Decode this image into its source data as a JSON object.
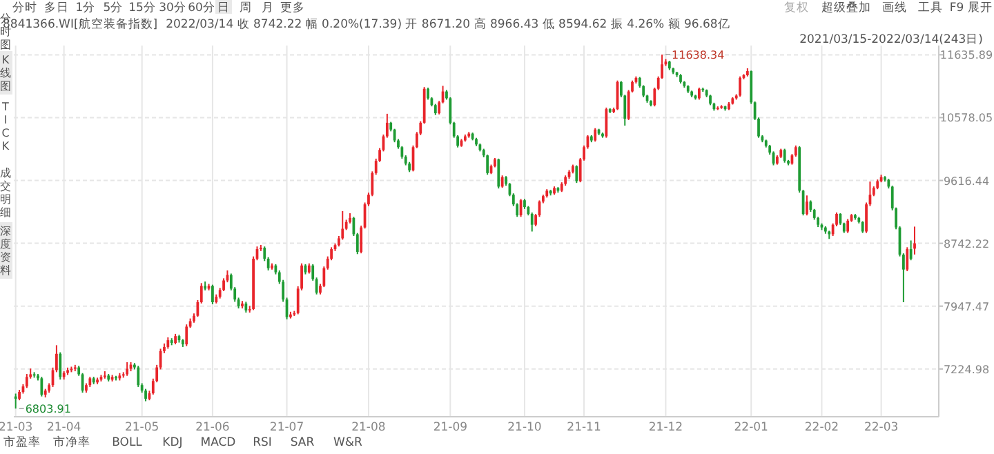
{
  "chart_data": {
    "type": "candlestick",
    "title": "8841366.WI[航空装备指数]",
    "subtitle": "2022/03/14 收 8742.22 幅 0.20%(17.39) 开 8671.20 高 8966.43 低 8594.62 振 4.26% 额 96.68亿",
    "log": true,
    "grid": true,
    "ylim": [
      6720,
      11800
    ],
    "yticks": [
      11635.89,
      10578.05,
      9616.44,
      8742.22,
      7947.47,
      7224.98
    ],
    "annotations": [
      "2021/03/15-2022/03/14(243日)",
      "分时",
      "多日",
      "1分",
      "5分",
      "15分",
      "30分",
      "60分",
      "日",
      "周",
      "月",
      "更多",
      "复权",
      "超级叠加",
      "画线",
      "工具",
      "F9",
      "展开",
      "分时图",
      "K线图",
      "TICK",
      "成交明细",
      "深度资料",
      "市盈率",
      "市净率",
      "BOLL",
      "KDJ",
      "MACD",
      "RSI",
      "SAR",
      "W&R",
      "11638.34",
      "6803.91"
    ],
    "categories": [
      "21-03",
      null,
      null,
      null,
      null,
      null,
      null,
      null,
      null,
      null,
      null,
      null,
      null,
      "21-04",
      null,
      null,
      null,
      null,
      null,
      null,
      null,
      null,
      null,
      null,
      null,
      null,
      null,
      null,
      null,
      null,
      null,
      null,
      null,
      null,
      "21-05",
      null,
      null,
      null,
      null,
      null,
      null,
      null,
      null,
      null,
      null,
      null,
      null,
      null,
      null,
      null,
      null,
      null,
      null,
      "21-06",
      null,
      null,
      null,
      null,
      null,
      null,
      null,
      null,
      null,
      null,
      null,
      null,
      null,
      null,
      null,
      null,
      null,
      null,
      null,
      "21-07",
      null,
      null,
      null,
      null,
      null,
      null,
      null,
      null,
      null,
      null,
      null,
      null,
      null,
      null,
      null,
      null,
      null,
      null,
      null,
      null,
      null,
      "21-08",
      null,
      null,
      null,
      null,
      null,
      null,
      null,
      null,
      null,
      null,
      null,
      null,
      null,
      null,
      null,
      null,
      null,
      null,
      null,
      null,
      null,
      "21-09",
      null,
      null,
      null,
      null,
      null,
      null,
      null,
      null,
      null,
      null,
      null,
      null,
      null,
      null,
      null,
      null,
      null,
      null,
      null,
      "21-10",
      null,
      null,
      null,
      null,
      null,
      null,
      null,
      null,
      null,
      null,
      null,
      null,
      null,
      null,
      null,
      "21-11",
      null,
      null,
      null,
      null,
      null,
      null,
      null,
      null,
      null,
      null,
      null,
      null,
      null,
      null,
      null,
      null,
      null,
      null,
      null,
      null,
      null,
      "21-12",
      null,
      null,
      null,
      null,
      null,
      null,
      null,
      null,
      null,
      null,
      null,
      null,
      null,
      null,
      null,
      null,
      null,
      null,
      null,
      null,
      null,
      null,
      "22-01",
      null,
      null,
      null,
      null,
      null,
      null,
      null,
      null,
      null,
      null,
      null,
      null,
      null,
      null,
      null,
      null,
      null,
      null,
      "22-02",
      null,
      null,
      null,
      null,
      null,
      null,
      null,
      null,
      null,
      null,
      null,
      null,
      null,
      null,
      null,
      "22-03",
      null,
      null,
      null,
      null,
      null,
      null,
      null,
      null,
      null
    ],
    "ohlc": [
      [
        6930,
        6960,
        6803.91,
        6906
      ],
      [
        6906,
        7000,
        6890,
        6978
      ],
      [
        6978,
        7060,
        6960,
        7036
      ],
      [
        7036,
        7170,
        7020,
        7138
      ],
      [
        7138,
        7230,
        7120,
        7167
      ],
      [
        7167,
        7190,
        7130,
        7153
      ],
      [
        7153,
        7170,
        7100,
        7123
      ],
      [
        7123,
        7140,
        6930,
        6949
      ],
      [
        6949,
        7010,
        6920,
        6992
      ],
      [
        6992,
        7070,
        6970,
        7050
      ],
      [
        7050,
        7240,
        7030,
        7212
      ],
      [
        7212,
        7490,
        7190,
        7393
      ],
      [
        7393,
        7410,
        7110,
        7138
      ],
      [
        7138,
        7200,
        7110,
        7182
      ],
      [
        7182,
        7240,
        7160,
        7212
      ],
      [
        7212,
        7250,
        7190,
        7227
      ],
      [
        7227,
        7270,
        7200,
        7242
      ],
      [
        7242,
        7260,
        7150,
        7167
      ],
      [
        7167,
        7180,
        6970,
        6992
      ],
      [
        6992,
        7070,
        6970,
        7050
      ],
      [
        7050,
        7140,
        7030,
        7123
      ],
      [
        7123,
        7140,
        7060,
        7079
      ],
      [
        7079,
        7130,
        7060,
        7109
      ],
      [
        7109,
        7160,
        7090,
        7138
      ],
      [
        7138,
        7200,
        7120,
        7153
      ],
      [
        7153,
        7170,
        7090,
        7109
      ],
      [
        7109,
        7160,
        7090,
        7138
      ],
      [
        7138,
        7150,
        7100,
        7123
      ],
      [
        7123,
        7180,
        7100,
        7153
      ],
      [
        7153,
        7190,
        7130,
        7167
      ],
      [
        7167,
        7300,
        7150,
        7227
      ],
      [
        7227,
        7300,
        7200,
        7272
      ],
      [
        7272,
        7290,
        7220,
        7242
      ],
      [
        7242,
        7260,
        7030,
        7050
      ],
      [
        7050,
        7070,
        6970,
        6992
      ],
      [
        6992,
        7010,
        6880,
        6906
      ],
      [
        6906,
        6990,
        6890,
        6963
      ],
      [
        6963,
        7120,
        6950,
        7094
      ],
      [
        7094,
        7270,
        7080,
        7242
      ],
      [
        7242,
        7450,
        7220,
        7424
      ],
      [
        7424,
        7510,
        7400,
        7470
      ],
      [
        7470,
        7580,
        7450,
        7547
      ],
      [
        7547,
        7570,
        7490,
        7516
      ],
      [
        7516,
        7620,
        7500,
        7594
      ],
      [
        7594,
        7610,
        7520,
        7547
      ],
      [
        7547,
        7560,
        7470,
        7500
      ],
      [
        7500,
        7730,
        7480,
        7704
      ],
      [
        7704,
        7800,
        7690,
        7768
      ],
      [
        7768,
        7860,
        7750,
        7832
      ],
      [
        7832,
        8020,
        7820,
        7995
      ],
      [
        7995,
        8230,
        7980,
        8195
      ],
      [
        8195,
        8250,
        8140,
        8161
      ],
      [
        8161,
        8220,
        8140,
        8195
      ],
      [
        8195,
        8210,
        7970,
        7995
      ],
      [
        7995,
        8090,
        7980,
        8061
      ],
      [
        8061,
        8170,
        8040,
        8144
      ],
      [
        8144,
        8290,
        8130,
        8263
      ],
      [
        8263,
        8390,
        8240,
        8332
      ],
      [
        8332,
        8350,
        8140,
        8161
      ],
      [
        8161,
        8180,
        8000,
        8028
      ],
      [
        8028,
        8050,
        7920,
        7946
      ],
      [
        7946,
        8010,
        7920,
        7979
      ],
      [
        7979,
        8000,
        7870,
        7896
      ],
      [
        7896,
        7950,
        7870,
        7912
      ],
      [
        7912,
        8570,
        7900,
        8540
      ],
      [
        8540,
        8700,
        8520,
        8665
      ],
      [
        8665,
        8720,
        8640,
        8683
      ],
      [
        8683,
        8700,
        8510,
        8540
      ],
      [
        8540,
        8560,
        8390,
        8418
      ],
      [
        8418,
        8480,
        8400,
        8453
      ],
      [
        8453,
        8470,
        8340,
        8366
      ],
      [
        8366,
        8390,
        8220,
        8246
      ],
      [
        8246,
        8270,
        8000,
        8028
      ],
      [
        8028,
        8050,
        7790,
        7816
      ],
      [
        7816,
        7880,
        7800,
        7848
      ],
      [
        7848,
        7890,
        7830,
        7864
      ],
      [
        7864,
        8190,
        7850,
        8161
      ],
      [
        8161,
        8480,
        8140,
        8453
      ],
      [
        8453,
        8470,
        8340,
        8366
      ],
      [
        8366,
        8480,
        8350,
        8453
      ],
      [
        8453,
        8470,
        8260,
        8280
      ],
      [
        8280,
        8300,
        8090,
        8111
      ],
      [
        8111,
        8220,
        8090,
        8195
      ],
      [
        8195,
        8440,
        8180,
        8418
      ],
      [
        8418,
        8570,
        8400,
        8540
      ],
      [
        8540,
        8690,
        8520,
        8665
      ],
      [
        8665,
        8740,
        8640,
        8718
      ],
      [
        8718,
        8840,
        8700,
        8808
      ],
      [
        8808,
        9180,
        8790,
        8937
      ],
      [
        8937,
        9060,
        8920,
        9029
      ],
      [
        9029,
        9150,
        9010,
        9085
      ],
      [
        9085,
        9100,
        8840,
        8863
      ],
      [
        8863,
        8880,
        8600,
        8629
      ],
      [
        8629,
        8980,
        8610,
        8955
      ],
      [
        8955,
        9300,
        8940,
        9274
      ],
      [
        9274,
        9440,
        9250,
        9410
      ],
      [
        9410,
        9750,
        9390,
        9725
      ],
      [
        9725,
        9940,
        9700,
        9907
      ],
      [
        9907,
        10100,
        9890,
        10072
      ],
      [
        10072,
        10310,
        10050,
        10282
      ],
      [
        10282,
        10640,
        10260,
        10496
      ],
      [
        10496,
        10510,
        10360,
        10388
      ],
      [
        10388,
        10400,
        10190,
        10218
      ],
      [
        10218,
        10240,
        10090,
        10114
      ],
      [
        10114,
        10130,
        9940,
        9969
      ],
      [
        9969,
        9990,
        9840,
        9866
      ],
      [
        9866,
        9890,
        9740,
        9765
      ],
      [
        9765,
        10140,
        9750,
        10114
      ],
      [
        10114,
        10350,
        10100,
        10325
      ],
      [
        10325,
        10520,
        10300,
        10496
      ],
      [
        10496,
        11080,
        10480,
        11051
      ],
      [
        11051,
        11070,
        10870,
        10893
      ],
      [
        10893,
        10910,
        10760,
        10781
      ],
      [
        10781,
        10800,
        10620,
        10649
      ],
      [
        10649,
        10850,
        10630,
        10826
      ],
      [
        10826,
        11100,
        10810,
        11006
      ],
      [
        11006,
        11030,
        10870,
        10893
      ],
      [
        10893,
        10910,
        10470,
        10496
      ],
      [
        10496,
        10510,
        10260,
        10282
      ],
      [
        10282,
        10300,
        10110,
        10135
      ],
      [
        10135,
        10240,
        10120,
        10218
      ],
      [
        10218,
        10310,
        10200,
        10282
      ],
      [
        10282,
        10350,
        10260,
        10325
      ],
      [
        10325,
        10340,
        10220,
        10240
      ],
      [
        10240,
        10260,
        10130,
        10156
      ],
      [
        10156,
        10170,
        10050,
        10072
      ],
      [
        10072,
        10090,
        9960,
        9989
      ],
      [
        9989,
        10000,
        9700,
        9725
      ],
      [
        9725,
        9850,
        9710,
        9825
      ],
      [
        9825,
        9950,
        9810,
        9928
      ],
      [
        9928,
        9940,
        9500,
        9527
      ],
      [
        9527,
        9690,
        9510,
        9665
      ],
      [
        9665,
        9680,
        9540,
        9566
      ],
      [
        9566,
        9580,
        9390,
        9410
      ],
      [
        9410,
        9430,
        9250,
        9274
      ],
      [
        9274,
        9290,
        9100,
        9122
      ],
      [
        9122,
        9350,
        9100,
        9332
      ],
      [
        9332,
        9350,
        9210,
        9236
      ],
      [
        9236,
        9250,
        9120,
        9141
      ],
      [
        9141,
        9160,
        8900,
        8992
      ],
      [
        8992,
        9140,
        8970,
        9122
      ],
      [
        9122,
        9330,
        9100,
        9313
      ],
      [
        9313,
        9410,
        9290,
        9391
      ],
      [
        9391,
        9490,
        9370,
        9468
      ],
      [
        9468,
        9480,
        9400,
        9429
      ],
      [
        9429,
        9530,
        9410,
        9507
      ],
      [
        9507,
        9520,
        9440,
        9468
      ],
      [
        9468,
        9590,
        9450,
        9566
      ],
      [
        9566,
        9690,
        9540,
        9665
      ],
      [
        9665,
        9770,
        9640,
        9745
      ],
      [
        9745,
        9850,
        9720,
        9825
      ],
      [
        9825,
        9840,
        9580,
        9606
      ],
      [
        9606,
        9950,
        9590,
        9928
      ],
      [
        9928,
        10140,
        9910,
        10114
      ],
      [
        10114,
        10300,
        10090,
        10282
      ],
      [
        10282,
        10300,
        10190,
        10218
      ],
      [
        10218,
        10410,
        10200,
        10388
      ],
      [
        10388,
        10400,
        10300,
        10325
      ],
      [
        10325,
        10340,
        10260,
        10282
      ],
      [
        10282,
        10740,
        10260,
        10715
      ],
      [
        10715,
        10730,
        10650,
        10671
      ],
      [
        10671,
        10740,
        10650,
        10715
      ],
      [
        10715,
        11190,
        10700,
        11166
      ],
      [
        11166,
        11180,
        10910,
        10938
      ],
      [
        10938,
        10950,
        10450,
        10561
      ],
      [
        10561,
        11030,
        10540,
        11006
      ],
      [
        11006,
        11190,
        10990,
        11166
      ],
      [
        11166,
        11260,
        11140,
        11235
      ],
      [
        11235,
        11250,
        11070,
        11097
      ],
      [
        11097,
        11110,
        10910,
        10938
      ],
      [
        10938,
        10950,
        10820,
        10849
      ],
      [
        10849,
        10860,
        10760,
        10781
      ],
      [
        10781,
        11070,
        10760,
        11051
      ],
      [
        11051,
        11260,
        11030,
        11235
      ],
      [
        11235,
        11638.34,
        11220,
        11468
      ],
      [
        11468,
        11560,
        11440,
        11516
      ],
      [
        11516,
        11530,
        11370,
        11398
      ],
      [
        11398,
        11410,
        11300,
        11328
      ],
      [
        11328,
        11340,
        11250,
        11281
      ],
      [
        11281,
        11300,
        11140,
        11166
      ],
      [
        11166,
        11180,
        11070,
        11097
      ],
      [
        11097,
        11110,
        10980,
        11006
      ],
      [
        11006,
        11020,
        10910,
        10938
      ],
      [
        10938,
        10950,
        10870,
        10893
      ],
      [
        10893,
        11070,
        10870,
        11051
      ],
      [
        11051,
        11070,
        11000,
        11028
      ],
      [
        11028,
        11040,
        10910,
        10938
      ],
      [
        10938,
        10950,
        10780,
        10804
      ],
      [
        10804,
        10820,
        10690,
        10715
      ],
      [
        10715,
        10760,
        10700,
        10737
      ],
      [
        10737,
        10780,
        10720,
        10760
      ],
      [
        10760,
        10770,
        10690,
        10715
      ],
      [
        10715,
        10830,
        10700,
        10804
      ],
      [
        10804,
        10910,
        10790,
        10893
      ],
      [
        10893,
        10960,
        10870,
        10938
      ],
      [
        10938,
        11260,
        10920,
        11235
      ],
      [
        11235,
        11300,
        11210,
        11281
      ],
      [
        11281,
        11400,
        11260,
        11351
      ],
      [
        11351,
        11360,
        10800,
        10826
      ],
      [
        10826,
        10840,
        10540,
        10561
      ],
      [
        10561,
        10580,
        10260,
        10282
      ],
      [
        10282,
        10300,
        10190,
        10218
      ],
      [
        10218,
        10230,
        10110,
        10135
      ],
      [
        10135,
        10150,
        10000,
        10031
      ],
      [
        10031,
        10050,
        9840,
        9866
      ],
      [
        9866,
        9990,
        9850,
        9969
      ],
      [
        9969,
        10090,
        9950,
        10072
      ],
      [
        10072,
        10090,
        9880,
        9907
      ],
      [
        9907,
        9920,
        9840,
        9866
      ],
      [
        9866,
        10010,
        9850,
        9989
      ],
      [
        9989,
        10140,
        9970,
        10114
      ],
      [
        10114,
        10130,
        9440,
        9468
      ],
      [
        9468,
        9480,
        9120,
        9141
      ],
      [
        9141,
        9400,
        9120,
        9313
      ],
      [
        9313,
        9330,
        9170,
        9198
      ],
      [
        9198,
        9210,
        9060,
        9085
      ],
      [
        9085,
        9100,
        8960,
        8992
      ],
      [
        8992,
        9010,
        8920,
        8955
      ],
      [
        8955,
        8970,
        8870,
        8900
      ],
      [
        8900,
        8910,
        8800,
        8863
      ],
      [
        8863,
        9010,
        8840,
        8992
      ],
      [
        8992,
        9160,
        8970,
        9141
      ],
      [
        9141,
        9150,
        8990,
        9010
      ],
      [
        9010,
        9020,
        8880,
        8900
      ],
      [
        8900,
        9070,
        8880,
        9047
      ],
      [
        9047,
        9140,
        9030,
        9122
      ],
      [
        9122,
        9140,
        9060,
        9085
      ],
      [
        9085,
        9100,
        9010,
        9029
      ],
      [
        9029,
        9040,
        8880,
        8900
      ],
      [
        8900,
        9300,
        8880,
        9274
      ],
      [
        9274,
        9600,
        9250,
        9410
      ],
      [
        9410,
        9530,
        9390,
        9507
      ],
      [
        9507,
        9630,
        9490,
        9606
      ],
      [
        9606,
        9700,
        9590,
        9665
      ],
      [
        9665,
        9680,
        9600,
        9626
      ],
      [
        9626,
        9640,
        9500,
        9527
      ],
      [
        9527,
        9540,
        9190,
        9217
      ],
      [
        9217,
        9230,
        8930,
        8955
      ],
      [
        8955,
        8970,
        8570,
        8593
      ],
      [
        8593,
        8610,
        7995,
        8401
      ],
      [
        8401,
        8690,
        8380,
        8665
      ],
      [
        8665,
        8780,
        8520,
        8540
      ],
      [
        8671.2,
        8966.43,
        8594.62,
        8742.22
      ]
    ]
  }
}
